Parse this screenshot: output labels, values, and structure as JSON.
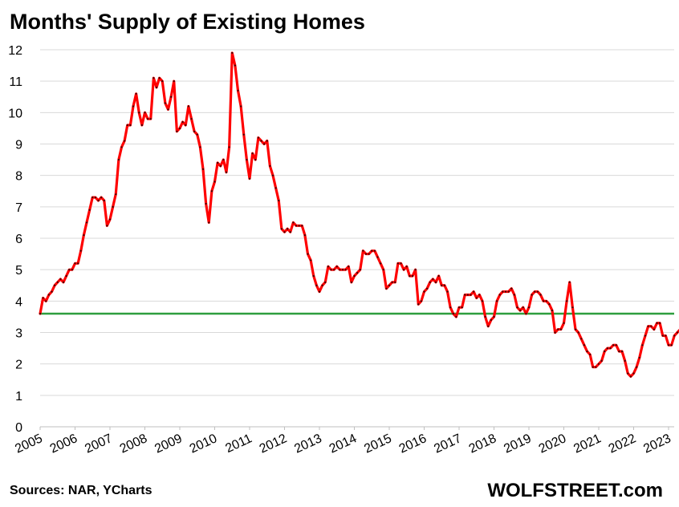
{
  "chart_data": {
    "type": "line",
    "title": "Months' Supply of Existing Homes",
    "xlabel": "",
    "ylabel": "",
    "ylim": [
      0,
      12
    ],
    "yticks": [
      "0",
      "1",
      "2",
      "3",
      "4",
      "5",
      "6",
      "7",
      "8",
      "9",
      "10",
      "11",
      "12"
    ],
    "xticks": [
      "2005",
      "2006",
      "2007",
      "2008",
      "2009",
      "2010",
      "2011",
      "2012",
      "2013",
      "2014",
      "2015",
      "2016",
      "2017",
      "2018",
      "2019",
      "2020",
      "2021",
      "2022",
      "2023"
    ],
    "grid": true,
    "legend": "none",
    "reference_line": 3.6,
    "colors": {
      "series": "#ff0000",
      "reference": "#2e9e3e",
      "grid": "#d9d9d9"
    },
    "series": [
      {
        "x_start": "2005-01",
        "x_step": "month",
        "values": [
          3.6,
          4.1,
          4.0,
          4.2,
          4.3,
          4.5,
          4.6,
          4.7,
          4.6,
          4.8,
          5.0,
          5.0,
          5.2,
          5.2,
          5.6,
          6.1,
          6.5,
          6.9,
          7.3,
          7.3,
          7.2,
          7.3,
          7.2,
          6.4,
          6.6,
          7.0,
          7.4,
          8.5,
          8.9,
          9.1,
          9.6,
          9.6,
          10.2,
          10.6,
          10.0,
          9.6,
          10.0,
          9.8,
          9.8,
          11.1,
          10.8,
          11.1,
          11.0,
          10.3,
          10.1,
          10.5,
          11.0,
          9.4,
          9.5,
          9.7,
          9.6,
          10.2,
          9.8,
          9.4,
          9.3,
          8.9,
          8.2,
          7.1,
          6.5,
          7.5,
          7.8,
          8.4,
          8.3,
          8.5,
          8.1,
          8.9,
          11.9,
          11.5,
          10.7,
          10.2,
          9.3,
          8.5,
          7.9,
          8.7,
          8.5,
          9.2,
          9.1,
          9.0,
          9.1,
          8.3,
          8.0,
          7.6,
          7.2,
          6.3,
          6.2,
          6.3,
          6.2,
          6.5,
          6.4,
          6.4,
          6.4,
          6.1,
          5.5,
          5.3,
          4.8,
          4.5,
          4.3,
          4.5,
          4.6,
          5.1,
          5.0,
          5.0,
          5.1,
          5.0,
          5.0,
          5.0,
          5.1,
          4.6,
          4.8,
          4.9,
          5.0,
          5.6,
          5.5,
          5.5,
          5.6,
          5.6,
          5.4,
          5.2,
          5.0,
          4.4,
          4.5,
          4.6,
          4.6,
          5.2,
          5.2,
          5.0,
          5.1,
          4.8,
          4.8,
          5.0,
          3.9,
          4.0,
          4.3,
          4.4,
          4.6,
          4.7,
          4.6,
          4.8,
          4.5,
          4.5,
          4.3,
          3.8,
          3.6,
          3.5,
          3.8,
          3.8,
          4.2,
          4.2,
          4.2,
          4.3,
          4.1,
          4.2,
          4.0,
          3.5,
          3.2,
          3.4,
          3.5,
          4.0,
          4.2,
          4.3,
          4.3,
          4.3,
          4.4,
          4.2,
          3.8,
          3.7,
          3.8,
          3.6,
          3.8,
          4.2,
          4.3,
          4.3,
          4.2,
          4.0,
          4.0,
          3.9,
          3.7,
          3.0,
          3.1,
          3.1,
          3.3,
          4.0,
          4.6,
          3.8,
          3.1,
          3.0,
          2.8,
          2.6,
          2.4,
          2.3,
          1.9,
          1.9,
          2.0,
          2.1,
          2.4,
          2.5,
          2.5,
          2.6,
          2.6,
          2.4,
          2.4,
          2.1,
          1.7,
          1.6,
          1.7,
          1.9,
          2.2,
          2.6,
          2.9,
          3.2,
          3.2,
          3.1,
          3.3,
          3.3,
          2.9,
          2.9,
          2.6,
          2.6,
          2.9,
          3.0,
          3.1,
          3.3,
          3.3,
          3.4,
          3.6
        ]
      }
    ]
  },
  "header": {
    "title": "Months' Supply of Existing Homes"
  },
  "footer": {
    "sources": "Sources: NAR, YCharts",
    "brand": "WOLFSTREET.com"
  }
}
